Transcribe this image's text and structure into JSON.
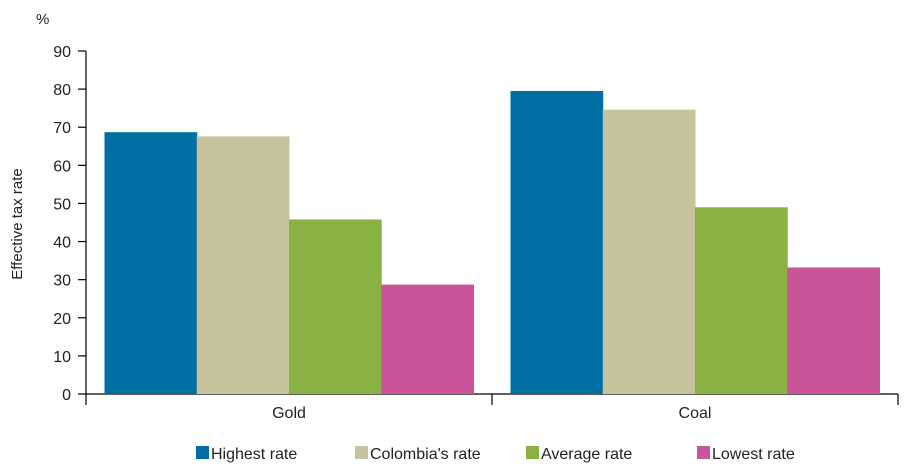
{
  "chart_data": {
    "type": "bar",
    "unit_label": "%",
    "ylabel": "Effective tax rate",
    "ylim": [
      0,
      90
    ],
    "yticks": [
      0,
      10,
      20,
      30,
      40,
      50,
      60,
      70,
      80,
      90
    ],
    "categories": [
      "Gold",
      "Coal"
    ],
    "series": [
      {
        "name": "Highest rate",
        "color": "#0070a4",
        "values": [
          68.7,
          79.5
        ]
      },
      {
        "name": "Colombia's rate",
        "color": "#c5c29c",
        "values": [
          67.6,
          74.6
        ]
      },
      {
        "name": "Average rate",
        "color": "#8ab143",
        "values": [
          45.8,
          49.0
        ]
      },
      {
        "name": "Lowest rate",
        "color": "#c95497",
        "values": [
          28.7,
          33.2
        ]
      }
    ],
    "grid": false,
    "legend": "bottom"
  }
}
